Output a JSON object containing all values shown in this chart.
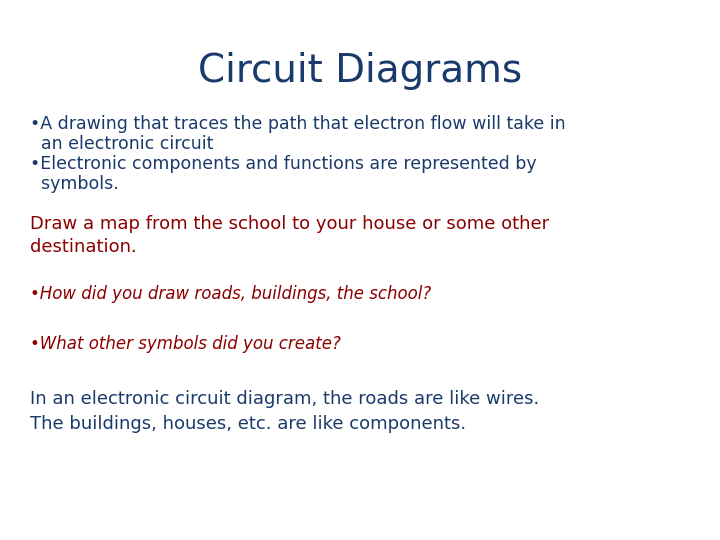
{
  "title": "Circuit Diagrams",
  "title_color": "#1a3a6b",
  "title_fontsize": 28,
  "background_color": "#ffffff",
  "bullet_color": "#1a3a6b",
  "bullet_fontsize": 12.5,
  "red_color": "#8b0000",
  "red_fontsize": 13,
  "red_italic_fontsize": 12,
  "navy_fontsize": 13,
  "bullet1_line1": "•A drawing that traces the path that electron flow will take in",
  "bullet1_line2": "  an electronic circuit",
  "bullet2_line1": "•Electronic components and functions are represented by",
  "bullet2_line2": "  symbols.",
  "draw_line1": "Draw a map from the school to your house or some other",
  "draw_line2": "destination.",
  "italic1": "•How did you draw roads, buildings, the school?",
  "italic2": "•What other symbols did you create?",
  "closing_line1": "In an electronic circuit diagram, the roads are like wires.",
  "closing_line2": "The buildings, houses, etc. are like components."
}
